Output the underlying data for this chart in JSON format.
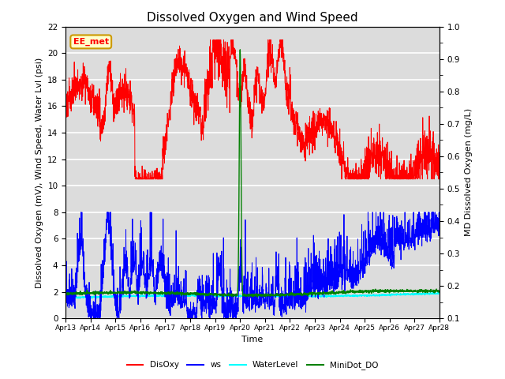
{
  "title": "Dissolved Oxygen and Wind Speed",
  "ylabel_left": "Dissolved Oxygen (mV), Wind Speed, Water Lvl (psi)",
  "ylabel_right": "MD Dissolved Oxygen (mg/L)",
  "xlabel": "Time",
  "ylim_left": [
    0,
    22
  ],
  "ylim_right": [
    0.1,
    1.0
  ],
  "annotation": "EE_met",
  "annotation_bbox": {
    "facecolor": "#ffffcc",
    "edgecolor": "#cc9900",
    "boxstyle": "round,pad=0.3"
  },
  "legend_labels": [
    "DisOxy",
    "ws",
    "WaterLevel",
    "MiniDot_DO"
  ],
  "legend_colors": [
    "red",
    "blue",
    "cyan",
    "green"
  ],
  "background_color": "#dcdcdc",
  "title_fontsize": 11,
  "label_fontsize": 8
}
